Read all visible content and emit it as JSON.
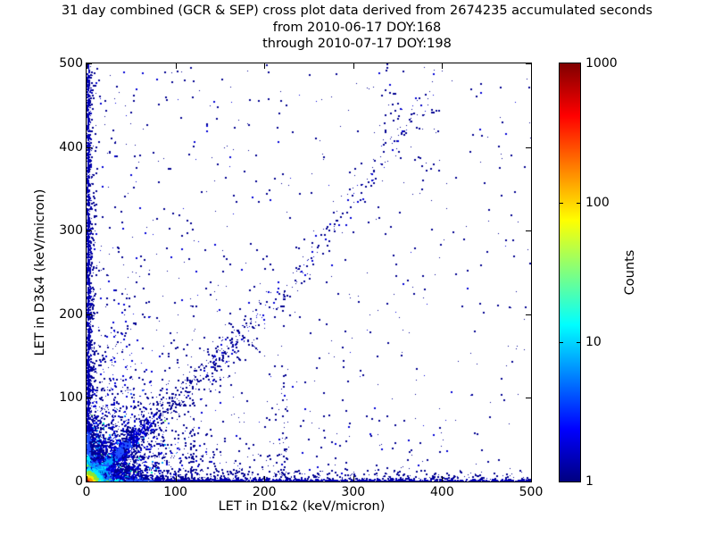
{
  "figure": {
    "title_line1": "31 day combined (GCR & SEP) cross plot data derived from 2674235 accumulated seconds",
    "title_line2": "from 2010-06-17 DOY:168",
    "title_line3": "through 2010-07-17 DOY:198"
  },
  "axes": {
    "x": {
      "label": "LET in D1&2 (keV/micron)",
      "range": [
        0,
        500
      ],
      "ticks": [
        0,
        100,
        200,
        300,
        400,
        500
      ]
    },
    "y": {
      "label": "LET in D3&4 (keV/micron)",
      "range": [
        0,
        500
      ],
      "ticks": [
        0,
        100,
        200,
        300,
        400,
        500
      ]
    }
  },
  "colorbar": {
    "label": "Counts",
    "scale": "log",
    "range": [
      1,
      1000
    ],
    "ticks": [
      {
        "value": 1,
        "label": "1",
        "frac": 0
      },
      {
        "value": 10,
        "label": "10",
        "frac": 0.3333
      },
      {
        "value": 100,
        "label": "100",
        "frac": 0.6667
      },
      {
        "value": 1000,
        "label": "1000",
        "frac": 1
      }
    ],
    "gradient_stops": [
      [
        "0%",
        "#000080"
      ],
      [
        "12.5%",
        "#0000ff"
      ],
      [
        "37.5%",
        "#00ffff"
      ],
      [
        "62.5%",
        "#ffff00"
      ],
      [
        "87.5%",
        "#ff0000"
      ],
      [
        "100%",
        "#800000"
      ]
    ]
  },
  "chart_data": {
    "type": "scatter",
    "subtype": "2d-density-cross-plot",
    "title": "31 day combined (GCR & SEP) cross plot data derived from 2674235 accumulated seconds",
    "subtitle": [
      "from 2010-06-17 DOY:168",
      "through 2010-07-17 DOY:198"
    ],
    "xlabel": "LET in D1&2 (keV/micron)",
    "ylabel": "LET in D3&4 (keV/micron)",
    "xlim": [
      0,
      500
    ],
    "ylim": [
      0,
      500
    ],
    "color_axis": {
      "label": "Counts",
      "scale": "log",
      "lim": [
        1,
        1000
      ],
      "colormap": "jet"
    },
    "grid": false,
    "legend": "none",
    "seed": 20100617,
    "features": [
      {
        "kind": "bg",
        "name": "uniform-sparse-background",
        "n": 320,
        "powx": 1,
        "powy": 1,
        "colors": [
          [
            "#000091",
            1
          ]
        ]
      },
      {
        "kind": "bg",
        "name": "low-value-biased-background",
        "n": 620,
        "powx": 1.9,
        "powy": 1.9,
        "colors": [
          [
            "#000091",
            3
          ],
          [
            "#0000d7",
            1
          ]
        ]
      },
      {
        "kind": "patch",
        "name": "dense-origin-speckle",
        "n": 2400,
        "mx": 20,
        "my": 20,
        "cap": 110,
        "colors": [
          [
            "#000091",
            45
          ],
          [
            "#0000d7",
            28
          ],
          [
            "#1e50ff",
            15
          ],
          [
            "#00a0ff",
            7
          ],
          [
            "#00e6c8",
            3
          ],
          [
            "#64e650",
            2
          ]
        ]
      },
      {
        "kind": "patch",
        "name": "origin-speckle-wide",
        "n": 1150,
        "mx": 46,
        "my": 46,
        "cap": 390,
        "colors": [
          [
            "#000091",
            70
          ],
          [
            "#0000d7",
            30
          ]
        ]
      },
      {
        "kind": "band_h",
        "name": "x-axis-band-fringe",
        "n": 680,
        "len": 500,
        "pow": 1.6,
        "thick": 6,
        "ramp": [
          [
            28,
            "#1e50ff"
          ],
          [
            60,
            "#0000d7"
          ],
          [
            10000,
            "#000091"
          ]
        ]
      },
      {
        "kind": "band_v",
        "name": "y-axis-band-fringe",
        "n": 540,
        "len": 500,
        "pow": 1.7,
        "thick": 5,
        "ramp": [
          [
            25,
            "#1e50ff"
          ],
          [
            10000,
            "#000091"
          ]
        ]
      },
      {
        "kind": "band_h",
        "name": "x-axis-hot-band",
        "n": 1500,
        "len": 500,
        "pow": 1.35,
        "thick": 1.7,
        "ramp": [
          [
            7,
            "#e10000"
          ],
          [
            12,
            "#ff9100"
          ],
          [
            19,
            "#ffe600"
          ],
          [
            27,
            "#64e650"
          ],
          [
            40,
            "#00e6ff"
          ],
          [
            75,
            "#1e50ff"
          ],
          [
            10000,
            "#0000b4"
          ]
        ]
      },
      {
        "kind": "band_v",
        "name": "y-axis-hot-band",
        "n": 1250,
        "len": 500,
        "pow": 1.45,
        "thick": 1.7,
        "ramp": [
          [
            6,
            "#e10000"
          ],
          [
            10,
            "#ff9100"
          ],
          [
            15,
            "#ffe600"
          ],
          [
            22,
            "#64e650"
          ],
          [
            33,
            "#00e6ff"
          ],
          [
            60,
            "#1e50ff"
          ],
          [
            10000,
            "#0000b4"
          ]
        ]
      },
      {
        "kind": "diag",
        "name": "diagonal-halo",
        "n": 950,
        "tmean": 42,
        "tcap": 175,
        "s0": 2.5,
        "s1": 0.09,
        "ramp": [
          [
            18,
            "#1e50ff"
          ],
          [
            45,
            "#0000e1"
          ],
          [
            10000,
            "#000091"
          ]
        ]
      },
      {
        "kind": "diag",
        "name": "main-diagonal-ridge",
        "n": 900,
        "tmean": 26,
        "tcap": 155,
        "s0": 1,
        "s1": 0.04,
        "ramp": [
          [
            6,
            "#c8ff32"
          ],
          [
            11,
            "#64ffc8"
          ],
          [
            20,
            "#00e6ff"
          ],
          [
            30,
            "#00a0ff"
          ],
          [
            48,
            "#1e50ff"
          ],
          [
            80,
            "#0000e1"
          ],
          [
            10000,
            "#000091"
          ]
        ]
      },
      {
        "kind": "curve",
        "name": "diagonal-upper-branch",
        "n": 300,
        "x0": 140,
        "y0": 140,
        "dx": 250,
        "dy": 250,
        "k": 0.35,
        "pw": 1.35,
        "jx": 6,
        "jy": 9,
        "colors": [
          [
            "#000091",
            3
          ],
          [
            "#0000d7",
            1
          ]
        ]
      },
      {
        "kind": "vstreak",
        "name": "vertical-streak-x30",
        "x0": 30,
        "n": 70,
        "mean": 70,
        "cap": 230,
        "jit": 1.3,
        "colors": [
          [
            "#000091",
            2
          ],
          [
            "#0000d7",
            1
          ]
        ]
      },
      {
        "kind": "vstreak",
        "name": "vertical-streak-x43",
        "x0": 43,
        "n": 60,
        "mean": 60,
        "cap": 200,
        "jit": 1.3,
        "colors": [
          [
            "#000091",
            2
          ],
          [
            "#0000d7",
            1
          ]
        ]
      },
      {
        "kind": "vstreak",
        "name": "vertical-streak-x53",
        "x0": 53,
        "n": 55,
        "mean": 55,
        "cap": 190,
        "jit": 1.3,
        "colors": [
          [
            "#000091",
            2
          ],
          [
            "#0000d7",
            1
          ]
        ]
      },
      {
        "kind": "vstreak",
        "name": "vertical-streak-x118",
        "x0": 118,
        "n": 45,
        "mean": 70,
        "cap": 210,
        "jit": 1.6,
        "colors": [
          [
            "#000091",
            1
          ]
        ]
      },
      {
        "kind": "vstreak",
        "name": "vertical-streak-x222",
        "x0": 222,
        "n": 40,
        "mean": 90,
        "cap": 210,
        "jit": 2.2,
        "colors": [
          [
            "#000091",
            1
          ]
        ]
      },
      {
        "kind": "hstreak",
        "name": "horizontal-streak-y13",
        "y0": 13,
        "n": 80,
        "mean": 120,
        "cap": 420,
        "jit": 1.5,
        "colors": [
          [
            "#000091",
            1
          ]
        ]
      },
      {
        "kind": "hstreak",
        "name": "horizontal-streak-y30",
        "y0": 30,
        "n": 45,
        "mean": 80,
        "cap": 300,
        "jit": 1.5,
        "colors": [
          [
            "#000091",
            1
          ]
        ]
      },
      {
        "kind": "cluster",
        "name": "upper-cluster-x335",
        "cx": 335,
        "cy": 450,
        "sx": 9,
        "sy": 30,
        "n": 22,
        "colors": [
          [
            "#000091",
            1
          ]
        ]
      },
      {
        "kind": "cluster",
        "name": "upper-cluster-x385",
        "cx": 385,
        "cy": 420,
        "sx": 7,
        "sy": 40,
        "n": 20,
        "colors": [
          [
            "#000091",
            1
          ]
        ]
      },
      {
        "kind": "blob",
        "name": "origin-hot-spot",
        "n": 2200,
        "rmean": 6,
        "ramp": [
          [
            2.2,
            "#960000"
          ],
          [
            4,
            "#ff2800"
          ],
          [
            6,
            "#ff9100"
          ],
          [
            9,
            "#ffe600"
          ],
          [
            13,
            "#8ce632"
          ],
          [
            18,
            "#00e6ff"
          ],
          [
            26,
            "#00a0ff"
          ],
          [
            40,
            "#1e50ff"
          ],
          [
            10000,
            "#0000b4"
          ]
        ]
      }
    ]
  }
}
